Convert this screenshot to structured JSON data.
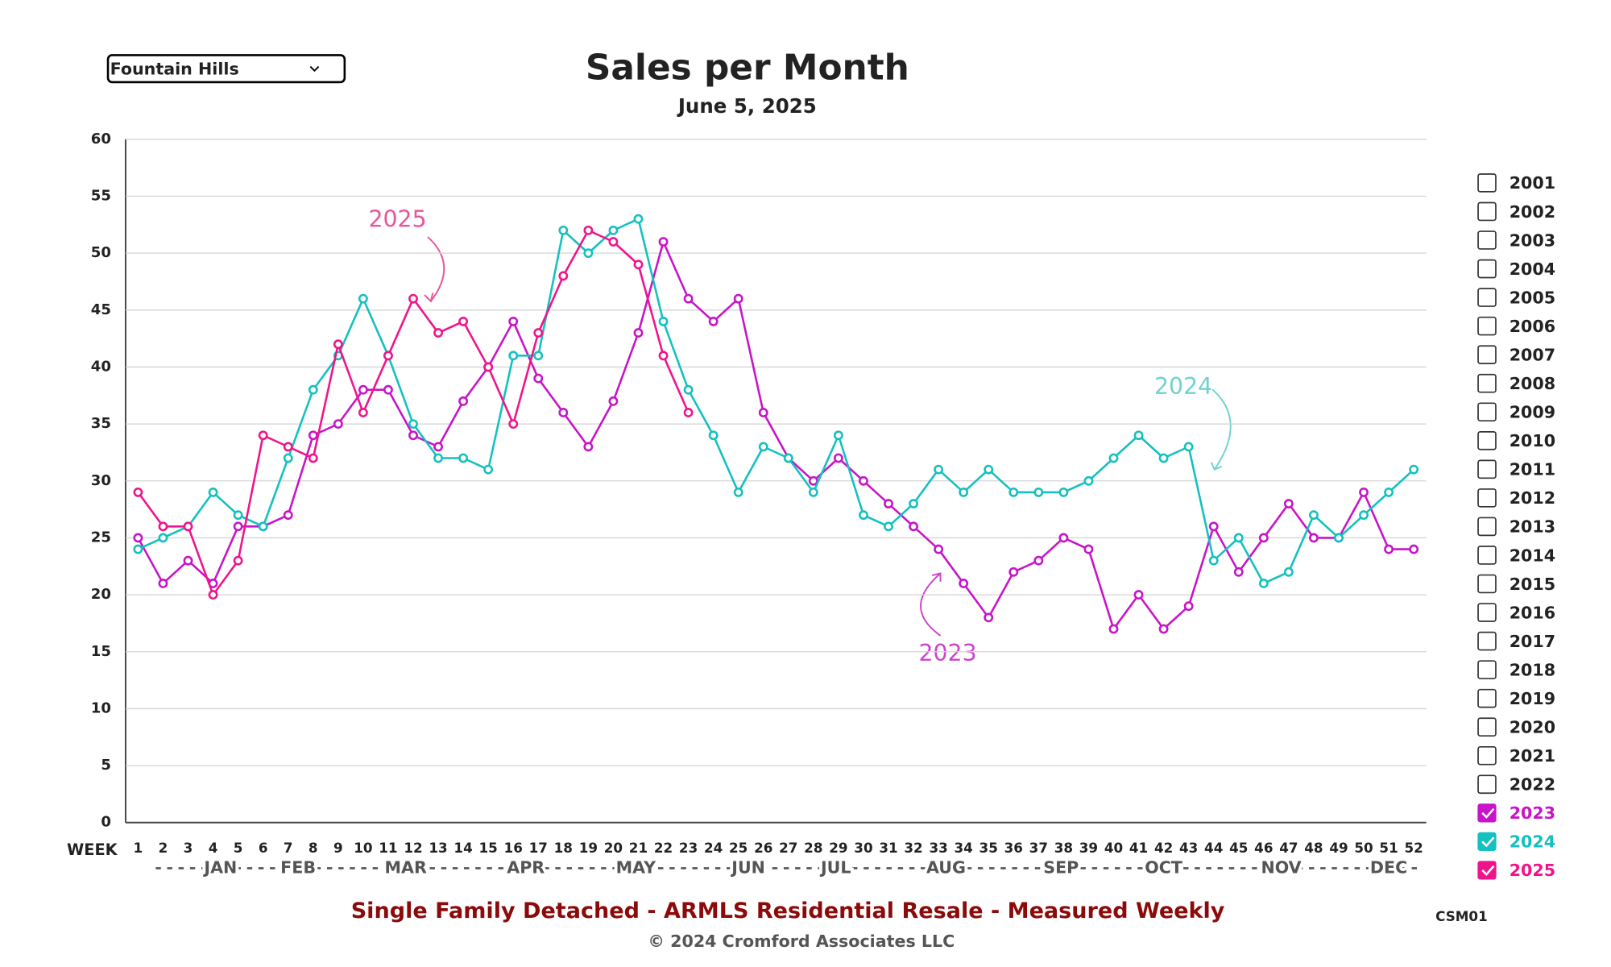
{
  "dropdown": "Fountain Hills",
  "chart_data": {
    "type": "line",
    "title": "Sales per Month",
    "subtitle": "June 5, 2025",
    "x_label": "WEEK",
    "x": [
      1,
      2,
      3,
      4,
      5,
      6,
      7,
      8,
      9,
      10,
      11,
      12,
      13,
      14,
      15,
      16,
      17,
      18,
      19,
      20,
      21,
      22,
      23,
      24,
      25,
      26,
      27,
      28,
      29,
      30,
      31,
      32,
      33,
      34,
      35,
      36,
      37,
      38,
      39,
      40,
      41,
      42,
      43,
      44,
      45,
      46,
      47,
      48,
      49,
      50,
      51,
      52
    ],
    "months": [
      "JAN",
      "FEB",
      "MAR",
      "APR",
      "MAY",
      "JUN",
      "JUL",
      "AUG",
      "SEP",
      "OCT",
      "NOV",
      "DEC"
    ],
    "xlim": [
      1,
      52
    ],
    "ylim": [
      0,
      60
    ],
    "yticks": [
      0,
      5,
      10,
      15,
      20,
      25,
      30,
      35,
      40,
      45,
      50,
      55,
      60
    ],
    "grid": true,
    "legend_years": [
      "2001",
      "2002",
      "2003",
      "2004",
      "2005",
      "2006",
      "2007",
      "2008",
      "2009",
      "2010",
      "2011",
      "2012",
      "2013",
      "2014",
      "2015",
      "2016",
      "2017",
      "2018",
      "2019",
      "2020",
      "2021",
      "2022"
    ],
    "series": [
      {
        "name": "2023",
        "color": "#c814c8",
        "values": [
          25,
          21,
          23,
          21,
          26,
          26,
          27,
          34,
          35,
          38,
          38,
          34,
          33,
          37,
          40,
          44,
          39,
          36,
          33,
          37,
          43,
          51,
          46,
          44,
          46,
          36,
          32,
          30,
          32,
          30,
          28,
          26,
          24,
          21,
          18,
          22,
          23,
          25,
          24,
          17,
          20,
          17,
          19,
          26,
          22,
          25,
          28,
          25,
          25,
          29,
          24,
          24
        ]
      },
      {
        "name": "2024",
        "color": "#14c0c0",
        "values": [
          24,
          25,
          26,
          29,
          27,
          26,
          32,
          38,
          41,
          46,
          41,
          35,
          32,
          32,
          31,
          41,
          41,
          52,
          50,
          52,
          53,
          44,
          38,
          34,
          29,
          33,
          32,
          29,
          34,
          27,
          26,
          28,
          31,
          29,
          31,
          29,
          29,
          29,
          30,
          32,
          34,
          32,
          33,
          23,
          25,
          21,
          22,
          27,
          25,
          27,
          29,
          31
        ]
      },
      {
        "name": "2025",
        "color": "#f0148c",
        "values": [
          29,
          26,
          26,
          20,
          23,
          34,
          33,
          32,
          42,
          36,
          41,
          46,
          43,
          44,
          40,
          35,
          43,
          48,
          52,
          51,
          49,
          41,
          36,
          null,
          null,
          null,
          null,
          null,
          null,
          null,
          null,
          null,
          null,
          null,
          null,
          null,
          null,
          null,
          null,
          null,
          null,
          null,
          null,
          null,
          null,
          null,
          null,
          null,
          null,
          null,
          null,
          null
        ]
      }
    ],
    "annotations": [
      "2025",
      "2024",
      "2023"
    ],
    "footer": "Single Family Detached - ARMLS Residential Resale - Measured Weekly",
    "copyright": "© 2024 Cromford Associates LLC",
    "code": "CSM01"
  }
}
